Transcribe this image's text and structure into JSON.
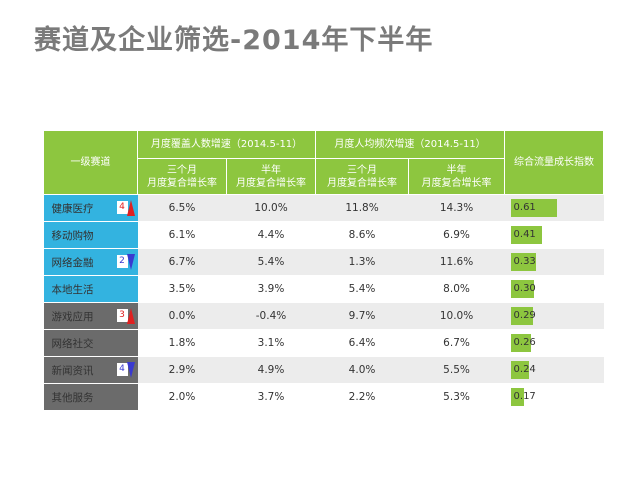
{
  "title": "赛道及企业筛选-2014年下半年",
  "table": {
    "header": {
      "category": "一级赛道",
      "group1": "月度覆盖人数增速（2014.5-11）",
      "group2": "月度人均频次增速（2014.5-11）",
      "composite": "综合流量成长指数",
      "sub3m": "三个月\n月度复合增长率",
      "sub6m": "半年\n月度复合增长率"
    },
    "rows": [
      {
        "name": "健康医疗",
        "rank": "4",
        "rank_dir": "up",
        "cat_color": "#33b3e0",
        "c1": "6.5%",
        "c2": "10.0%",
        "f1": "11.8%",
        "f2": "14.3%",
        "idx": "0.61",
        "idx_value": 0.61
      },
      {
        "name": "移动购物",
        "rank": "",
        "rank_dir": "",
        "cat_color": "#33b3e0",
        "c1": "6.1%",
        "c2": "4.4%",
        "f1": "8.6%",
        "f2": "6.9%",
        "idx": "0.41",
        "idx_value": 0.41
      },
      {
        "name": "网络金融",
        "rank": "2",
        "rank_dir": "down",
        "cat_color": "#33b3e0",
        "c1": "6.7%",
        "c2": "5.4%",
        "f1": "1.3%",
        "f2": "11.6%",
        "idx": "0.33",
        "idx_value": 0.33
      },
      {
        "name": "本地生活",
        "rank": "",
        "rank_dir": "",
        "cat_color": "#33b3e0",
        "c1": "3.5%",
        "c2": "3.9%",
        "f1": "5.4%",
        "f2": "8.0%",
        "idx": "0.30",
        "idx_value": 0.3
      },
      {
        "name": "游戏应用",
        "rank": "3",
        "rank_dir": "up",
        "cat_color": "#6b6b6b",
        "c1": "0.0%",
        "c2": "-0.4%",
        "f1": "9.7%",
        "f2": "10.0%",
        "idx": "0.29",
        "idx_value": 0.29
      },
      {
        "name": "网络社交",
        "rank": "",
        "rank_dir": "",
        "cat_color": "#6b6b6b",
        "c1": "1.8%",
        "c2": "3.1%",
        "f1": "6.4%",
        "f2": "6.7%",
        "idx": "0.26",
        "idx_value": 0.26
      },
      {
        "name": "新闻资讯",
        "rank": "4",
        "rank_dir": "down",
        "cat_color": "#6b6b6b",
        "c1": "2.9%",
        "c2": "4.9%",
        "f1": "4.0%",
        "f2": "5.5%",
        "idx": "0.24",
        "idx_value": 0.24
      },
      {
        "name": "其他服务",
        "rank": "",
        "rank_dir": "",
        "cat_color": "#6b6b6b",
        "c1": "2.0%",
        "c2": "3.7%",
        "f1": "2.2%",
        "f2": "5.3%",
        "idx": "0.17",
        "idx_value": 0.17
      }
    ]
  },
  "colors": {
    "header_green": "#8dc63f",
    "bar_green": "#8dc63f",
    "category_blue": "#33b3e0",
    "category_gray": "#6b6b6b",
    "up_arrow": "#e02020",
    "down_arrow": "#3a3ad0"
  }
}
